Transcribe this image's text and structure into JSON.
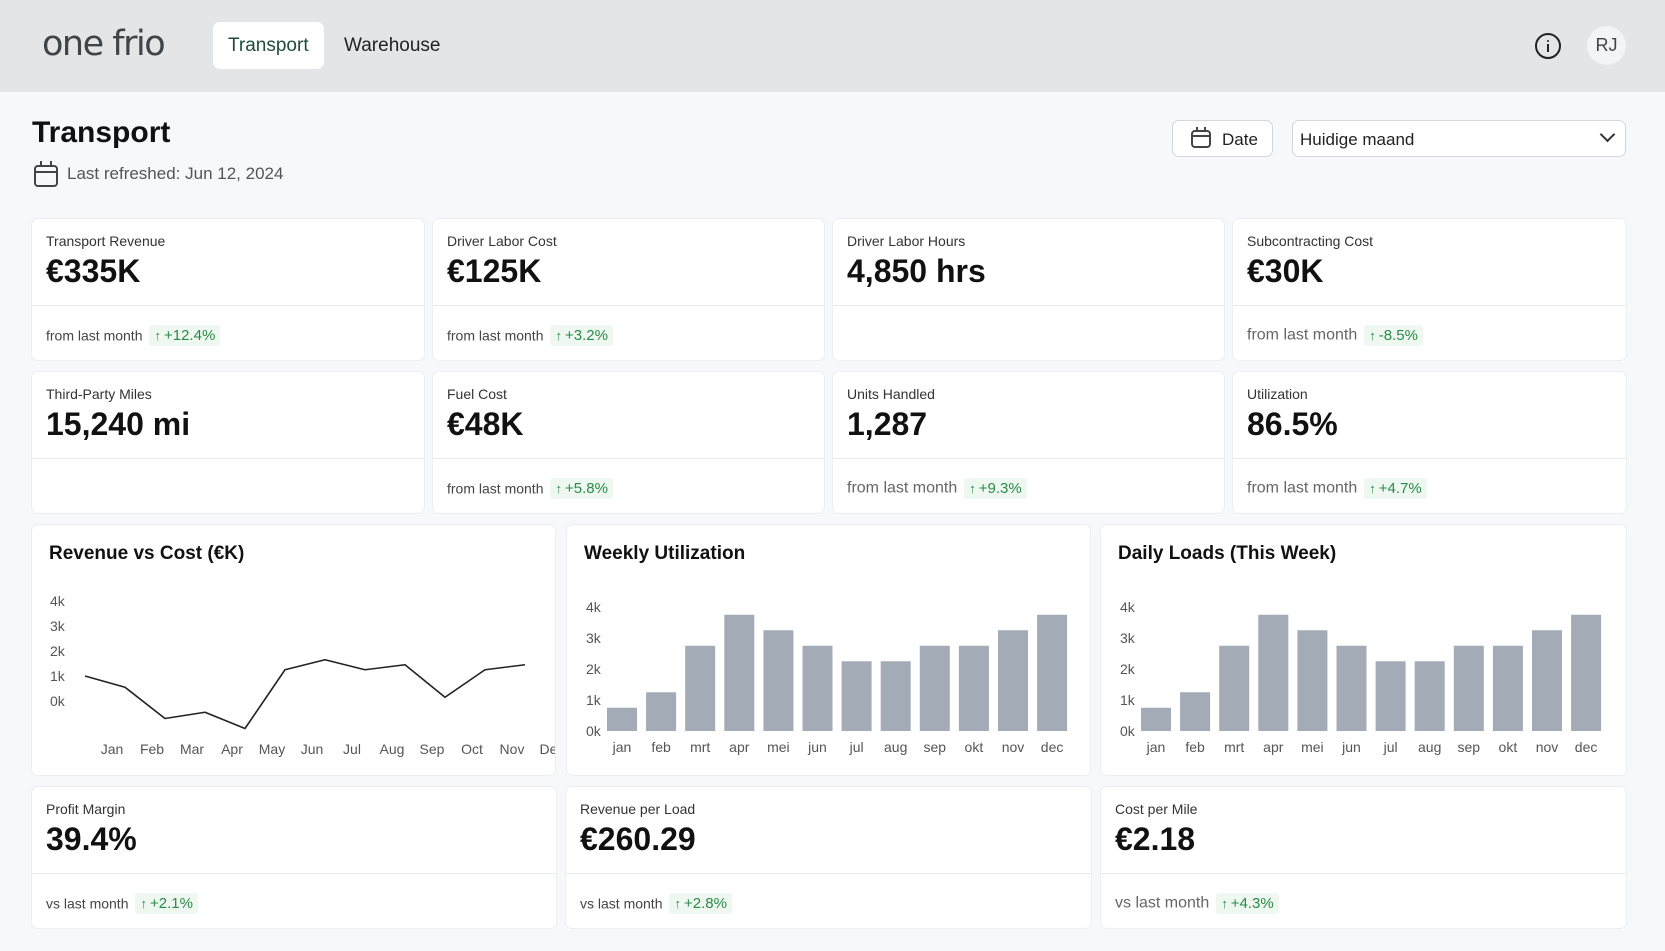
{
  "app": {
    "logo": "one frio"
  },
  "nav": {
    "tabs": [
      {
        "label": "Transport",
        "active": true
      },
      {
        "label": "Warehouse",
        "active": false
      }
    ]
  },
  "header": {
    "info_icon": "info-icon",
    "avatar_initials": "RJ"
  },
  "page": {
    "title": "Transport",
    "refreshed": "Last refreshed: Jun 12, 2024"
  },
  "filters": {
    "date_label": "Date",
    "period_value": "Huidige maand"
  },
  "kpis": [
    {
      "label": "Transport Revenue",
      "value": "€335K",
      "foot": "from last month",
      "change": "+12.4%"
    },
    {
      "label": "Driver Labor Cost",
      "value": "€125K",
      "foot": "from last month",
      "change": "+3.2%"
    },
    {
      "label": "Driver Labor Hours",
      "value": "4,850 hrs",
      "foot": "",
      "change": ""
    },
    {
      "label": "Subcontracting Cost",
      "value": "€30K",
      "foot": "from last month",
      "change": "-8.5%"
    },
    {
      "label": "Third-Party Miles",
      "value": "15,240 mi",
      "foot": "",
      "change": ""
    },
    {
      "label": "Fuel Cost",
      "value": "€48K",
      "foot": "from last month",
      "change": "+5.8%"
    },
    {
      "label": "Units Handled",
      "value": "1,287",
      "foot": "from last month",
      "change": "+9.3%"
    },
    {
      "label": "Utilization",
      "value": "86.5%",
      "foot": "from last month",
      "change": "+4.7%"
    }
  ],
  "metrics": [
    {
      "label": "Profit Margin",
      "value": "39.4%",
      "foot": "vs last month",
      "change": "+2.1%"
    },
    {
      "label": "Revenue per Load",
      "value": "€260.29",
      "foot": "vs last month",
      "change": "+2.8%"
    },
    {
      "label": "Cost per Mile",
      "value": "€2.18",
      "foot": "vs last month",
      "change": "+4.3%"
    }
  ],
  "chart_data": [
    {
      "type": "line",
      "title": "Revenue vs Cost (€K)",
      "categories": [
        "Jan",
        "Feb",
        "Mar",
        "Apr",
        "May",
        "Jun",
        "Jul",
        "Aug",
        "Sep",
        "Oct",
        "Nov",
        "Dec"
      ],
      "series": [
        {
          "values": [
            1000,
            550,
            -700,
            -450,
            -1100,
            1250,
            1650,
            1250,
            1450,
            150,
            1250,
            1450
          ]
        }
      ],
      "yticks": [
        "4k",
        "3k",
        "2k",
        "1k",
        "0k"
      ],
      "ylim": [
        0,
        4000
      ],
      "grid": false
    },
    {
      "type": "bar",
      "title": "Weekly Utilization",
      "categories": [
        "jan",
        "feb",
        "mrt",
        "apr",
        "mei",
        "jun",
        "jul",
        "aug",
        "sep",
        "okt",
        "nov",
        "dec"
      ],
      "values": [
        750,
        1250,
        2750,
        3750,
        3250,
        2750,
        2250,
        2250,
        2750,
        2750,
        3250,
        3750
      ],
      "yticks": [
        "4k",
        "3k",
        "2k",
        "1k",
        "0k"
      ],
      "ylim": [
        0,
        4250
      ],
      "color": "#a3abb6"
    },
    {
      "type": "bar",
      "title": "Daily Loads (This Week)",
      "categories": [
        "jan",
        "feb",
        "mrt",
        "apr",
        "mei",
        "jun",
        "jul",
        "aug",
        "sep",
        "okt",
        "nov",
        "dec"
      ],
      "values": [
        750,
        1250,
        2750,
        3750,
        3250,
        2750,
        2250,
        2250,
        2750,
        2750,
        3250,
        3750
      ],
      "yticks": [
        "4k",
        "3k",
        "2k",
        "1k",
        "0k"
      ],
      "ylim": [
        0,
        4250
      ],
      "color": "#a3abb6"
    }
  ]
}
